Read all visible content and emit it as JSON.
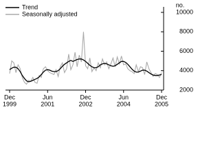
{
  "chart_data": {
    "type": "line",
    "y_label": "no.",
    "x": [
      "1999-12",
      "2000-01",
      "2000-02",
      "2000-03",
      "2000-04",
      "2000-05",
      "2000-06",
      "2000-07",
      "2000-08",
      "2000-09",
      "2000-10",
      "2000-11",
      "2000-12",
      "2001-01",
      "2001-02",
      "2001-03",
      "2001-04",
      "2001-05",
      "2001-06",
      "2001-07",
      "2001-08",
      "2001-09",
      "2001-10",
      "2001-11",
      "2001-12",
      "2002-01",
      "2002-02",
      "2002-03",
      "2002-04",
      "2002-05",
      "2002-06",
      "2002-07",
      "2002-08",
      "2002-09",
      "2002-10",
      "2002-11",
      "2002-12",
      "2003-01",
      "2003-02",
      "2003-03",
      "2003-04",
      "2003-05",
      "2003-06",
      "2003-07",
      "2003-08",
      "2003-09",
      "2003-10",
      "2003-11",
      "2003-12",
      "2004-01",
      "2004-02",
      "2004-03",
      "2004-04",
      "2004-05",
      "2004-06",
      "2004-07",
      "2004-08",
      "2004-09",
      "2004-10",
      "2004-11",
      "2004-12",
      "2005-01",
      "2005-02",
      "2005-03",
      "2005-04",
      "2005-05",
      "2005-06",
      "2005-07",
      "2005-08",
      "2005-09",
      "2005-10",
      "2005-11",
      "2005-12"
    ],
    "series": [
      {
        "name": "Trend",
        "color": "#000000",
        "values": [
          4100,
          4250,
          4350,
          4350,
          4200,
          3900,
          3500,
          3200,
          2950,
          2850,
          2900,
          3000,
          3100,
          3200,
          3350,
          3600,
          3850,
          4050,
          4100,
          4050,
          3950,
          3900,
          3900,
          4000,
          4200,
          4450,
          4650,
          4800,
          4950,
          5050,
          4950,
          5050,
          5150,
          5200,
          5200,
          5100,
          4950,
          4750,
          4550,
          4400,
          4300,
          4300,
          4400,
          4600,
          4700,
          4750,
          4700,
          4600,
          4500,
          4450,
          4500,
          4650,
          4800,
          4950,
          4950,
          4850,
          4650,
          4400,
          4150,
          3950,
          3850,
          3850,
          3950,
          4050,
          4050,
          3950,
          3800,
          3650,
          3550,
          3500,
          3500,
          3550,
          3600
        ]
      },
      {
        "name": "Seasonally adjusted",
        "color": "#aaaaaa",
        "values": [
          3700,
          5000,
          4800,
          3800,
          4600,
          4200,
          3300,
          2800,
          2600,
          3000,
          2900,
          3300,
          2800,
          2700,
          3500,
          3300,
          4200,
          4400,
          4000,
          3800,
          3700,
          3600,
          4100,
          3400,
          4400,
          4800,
          3800,
          4200,
          5700,
          4100,
          4600,
          5900,
          4400,
          5600,
          4900,
          8000,
          4500,
          4200,
          5300,
          3900,
          4300,
          4000,
          4800,
          4300,
          5200,
          4600,
          4900,
          4200,
          4700,
          5300,
          4400,
          5400,
          4700,
          5500,
          4600,
          4700,
          4200,
          4000,
          3900,
          3700,
          4600,
          3900,
          4400,
          4300,
          3600,
          4900,
          4200,
          3800,
          3400,
          3700,
          3600,
          3300,
          3800
        ]
      }
    ],
    "xlim": [
      "1999-12",
      "2005-12"
    ],
    "xticks": [
      {
        "value": "1999-12",
        "label": [
          "Dec",
          "1999"
        ]
      },
      {
        "value": "2001-06",
        "label": [
          "Jun",
          "2001"
        ]
      },
      {
        "value": "2002-12",
        "label": [
          "Dec",
          "2002"
        ]
      },
      {
        "value": "2004-06",
        "label": [
          "Jun",
          "2004"
        ]
      },
      {
        "value": "2005-12",
        "label": [
          "Dec",
          "2005"
        ]
      }
    ],
    "ylim": [
      2000,
      10000
    ],
    "yticks": [
      2000,
      4000,
      6000,
      8000,
      10000
    ],
    "legend": "top-left"
  }
}
